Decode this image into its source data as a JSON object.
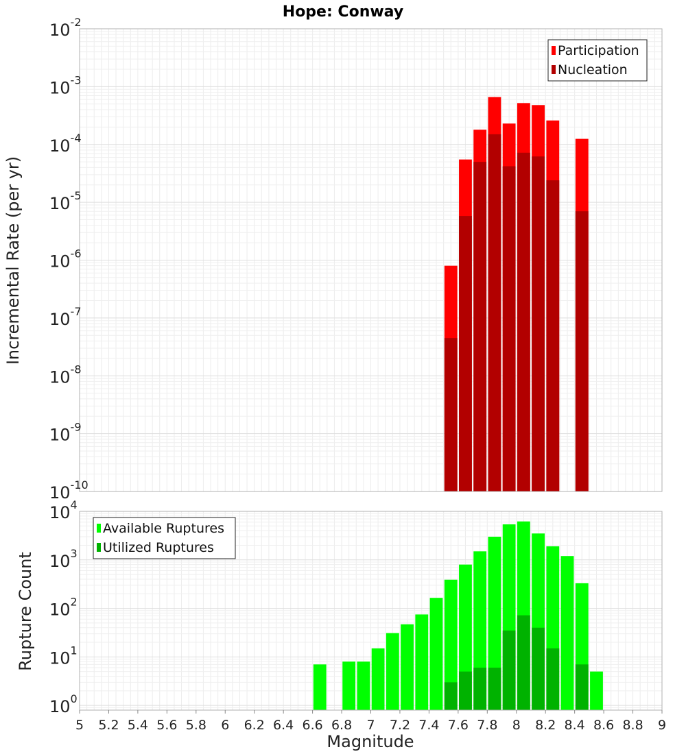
{
  "chart_data": [
    {
      "type": "bar",
      "title": "Hope: Conway",
      "xlabel": "",
      "ylabel": "Incremental Rate (per yr)",
      "xlim": [
        5,
        9
      ],
      "ylim": [
        1e-10,
        0.01
      ],
      "yscale": "log",
      "grid": true,
      "legend_position": "top-right",
      "bin_width": 0.1,
      "series": [
        {
          "name": "Participation",
          "color": "#ff0000",
          "x": [
            7.55,
            7.65,
            7.75,
            7.85,
            7.95,
            8.05,
            8.15,
            8.25,
            8.45
          ],
          "values": [
            8e-07,
            5.5e-05,
            0.00018,
            0.00066,
            0.00023,
            0.00052,
            0.00048,
            0.00026,
            0.000125
          ]
        },
        {
          "name": "Nucleation",
          "color": "#b20000",
          "x": [
            7.55,
            7.65,
            7.75,
            7.85,
            7.95,
            8.05,
            8.15,
            8.25,
            8.45
          ],
          "values": [
            4.5e-08,
            5.8e-06,
            5e-05,
            0.00015,
            4.2e-05,
            7.2e-05,
            6.2e-05,
            2.4e-05,
            7e-06
          ]
        }
      ],
      "y_ticks": [
        {
          "base": "10",
          "exp": "-2"
        },
        {
          "base": "10",
          "exp": "-3"
        },
        {
          "base": "10",
          "exp": "-4"
        },
        {
          "base": "10",
          "exp": "-5"
        },
        {
          "base": "10",
          "exp": "-6"
        },
        {
          "base": "10",
          "exp": "-7"
        },
        {
          "base": "10",
          "exp": "-8"
        },
        {
          "base": "10",
          "exp": "-9"
        },
        {
          "base": "10",
          "exp": "-10"
        }
      ]
    },
    {
      "type": "bar",
      "title": "",
      "xlabel": "Magnitude",
      "ylabel": "Rupture Count",
      "xlim": [
        5,
        9
      ],
      "ylim": [
        0.8,
        10000
      ],
      "yscale": "log",
      "grid": true,
      "legend_position": "top-left",
      "bin_width": 0.1,
      "series": [
        {
          "name": "Available Ruptures",
          "color": "#00ff00",
          "x": [
            6.65,
            6.85,
            6.95,
            7.05,
            7.15,
            7.25,
            7.35,
            7.45,
            7.55,
            7.65,
            7.75,
            7.85,
            7.95,
            8.05,
            8.15,
            8.25,
            8.35,
            8.45,
            8.55
          ],
          "values": [
            7,
            8,
            8,
            15,
            31,
            47,
            75,
            165,
            390,
            800,
            1500,
            3000,
            5400,
            6200,
            3500,
            1900,
            1200,
            330,
            5
          ]
        },
        {
          "name": "Utilized Ruptures",
          "color": "#00b200",
          "x": [
            7.55,
            7.65,
            7.75,
            7.85,
            7.95,
            8.05,
            8.15,
            8.25,
            8.45
          ],
          "values": [
            3,
            5,
            6,
            6,
            35,
            72,
            40,
            15,
            7
          ]
        }
      ],
      "x_ticks": [
        "5",
        "5.2",
        "5.4",
        "5.6",
        "5.8",
        "6",
        "6.2",
        "6.4",
        "6.6",
        "6.8",
        "7",
        "7.2",
        "7.4",
        "7.6",
        "7.8",
        "8",
        "8.2",
        "8.4",
        "8.6",
        "8.8",
        "9"
      ],
      "y_ticks": [
        {
          "base": "10",
          "exp": "4"
        },
        {
          "base": "10",
          "exp": "3"
        },
        {
          "base": "10",
          "exp": "2"
        },
        {
          "base": "10",
          "exp": "1"
        },
        {
          "base": "10",
          "exp": "0"
        }
      ]
    }
  ]
}
